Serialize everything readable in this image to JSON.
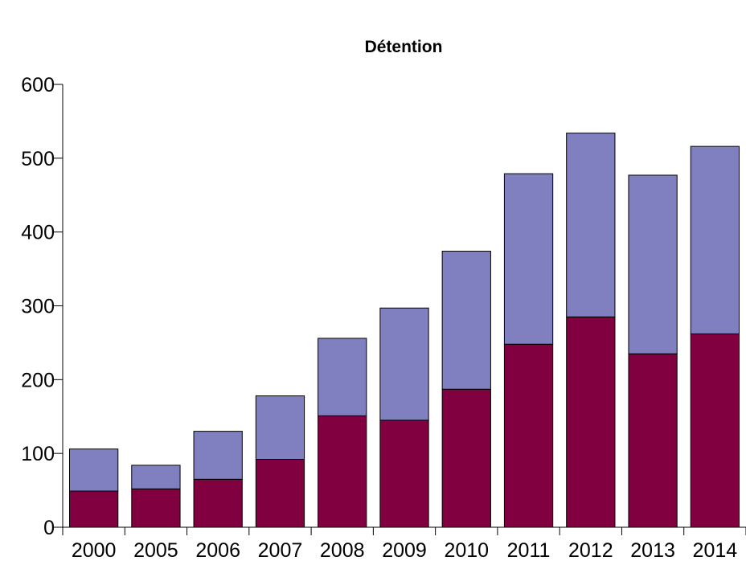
{
  "chart_data": {
    "type": "bar",
    "stacked": true,
    "title": "Détention",
    "xlabel": "",
    "ylabel": "",
    "categories": [
      "2000",
      "2005",
      "2006",
      "2007",
      "2008",
      "2009",
      "2010",
      "2011",
      "2012",
      "2013",
      "2014"
    ],
    "series": [
      {
        "color": "#800040",
        "values": [
          49,
          52,
          65,
          92,
          151,
          145,
          187,
          248,
          285,
          235,
          262
        ]
      },
      {
        "color": "#8080c0",
        "values": [
          57,
          32,
          65,
          86,
          105,
          152,
          187,
          231,
          249,
          242,
          254
        ]
      }
    ],
    "ylim": [
      0,
      600
    ],
    "yticks": [
      0,
      100,
      200,
      300,
      400,
      500,
      600
    ],
    "grid": false,
    "legend": "none"
  }
}
